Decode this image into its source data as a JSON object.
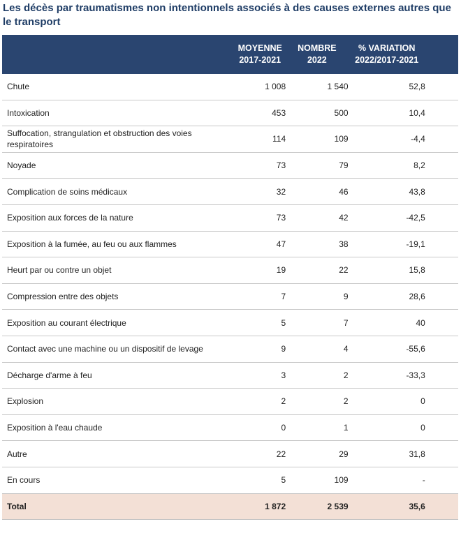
{
  "title": "Les décès par traumatismes non intentionnels associés à des causes externes autres que le transport",
  "table": {
    "headers": [
      [
        "MOYENNE",
        "2017-2021"
      ],
      [
        "NOMBRE",
        "2022"
      ],
      [
        "% VARIATION",
        "2022/2017-2021"
      ]
    ],
    "rows": [
      [
        "Chute",
        "1 008",
        "1 540",
        "52,8"
      ],
      [
        "Intoxication",
        "453",
        "500",
        "10,4"
      ],
      [
        "Suffocation, strangulation et obstruction des voies respiratoires",
        "114",
        "109",
        "-4,4"
      ],
      [
        "Noyade",
        "73",
        "79",
        "8,2"
      ],
      [
        "Complication de soins médicaux",
        "32",
        "46",
        "43,8"
      ],
      [
        "Exposition aux forces de la nature",
        "73",
        "42",
        "-42,5"
      ],
      [
        "Exposition à la fumée, au feu ou aux flammes",
        "47",
        "38",
        "-19,1"
      ],
      [
        "Heurt par ou contre un objet",
        "19",
        "22",
        "15,8"
      ],
      [
        "Compression entre des objets",
        "7",
        "9",
        "28,6"
      ],
      [
        "Exposition au courant électrique",
        "5",
        "7",
        "40"
      ],
      [
        "Contact avec une machine ou un dispositif de levage",
        "9",
        "4",
        "-55,6"
      ],
      [
        "Décharge d'arme à feu",
        "3",
        "2",
        "-33,3"
      ],
      [
        "Explosion",
        "2",
        "2",
        "0"
      ],
      [
        "Exposition à l'eau chaude",
        "0",
        "1",
        "0"
      ],
      [
        "Autre",
        "22",
        "29",
        "31,8"
      ],
      [
        "En cours",
        "5",
        "109",
        "-"
      ]
    ],
    "total": [
      "Total",
      "1 872",
      "2 539",
      "35,6"
    ]
  }
}
